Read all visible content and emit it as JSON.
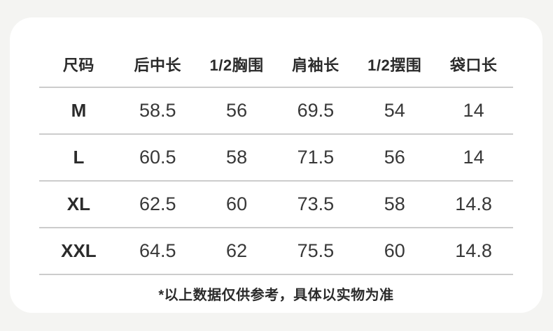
{
  "colors": {
    "page_background": "#f4f4f2",
    "card_background": "#ffffff",
    "divider": "#cccccc",
    "header_text": "#2b2b2b",
    "value_text": "#383838"
  },
  "chart_data": {
    "type": "table",
    "title": "",
    "columns": [
      "尺码",
      "后中长",
      "1/2胸围",
      "肩袖长",
      "1/2摆围",
      "袋口长"
    ],
    "rows": [
      [
        "M",
        "58.5",
        "56",
        "69.5",
        "54",
        "14"
      ],
      [
        "L",
        "60.5",
        "58",
        "71.5",
        "56",
        "14"
      ],
      [
        "XL",
        "62.5",
        "60",
        "73.5",
        "58",
        "14.8"
      ],
      [
        "XXL",
        "64.5",
        "62",
        "75.5",
        "60",
        "14.8"
      ]
    ],
    "footnote": "*以上数据仅供参考，具体以实物为准"
  }
}
